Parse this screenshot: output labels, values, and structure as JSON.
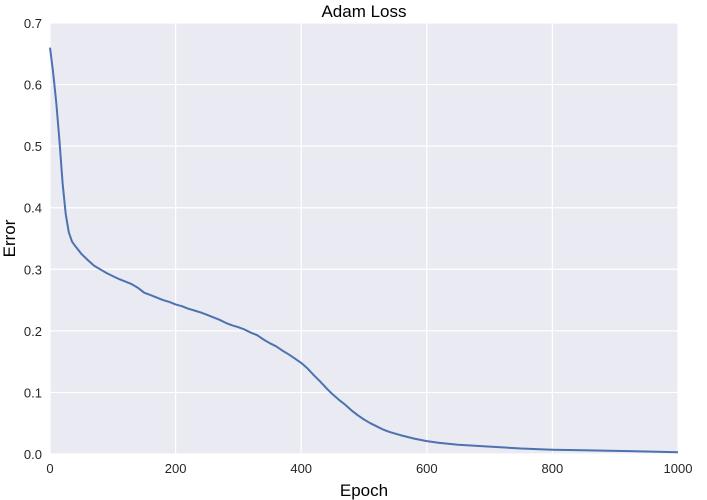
{
  "chart_data": {
    "type": "line",
    "title": "Adam Loss",
    "xlabel": "Epoch",
    "ylabel": "Error",
    "xlim": [
      0,
      1000
    ],
    "ylim": [
      0,
      0.7
    ],
    "xticks": [
      0,
      200,
      400,
      600,
      800,
      1000
    ],
    "yticks": [
      0.0,
      0.1,
      0.2,
      0.3,
      0.4,
      0.5,
      0.6,
      0.7
    ],
    "xtick_labels": [
      "0",
      "200",
      "400",
      "600",
      "800",
      "1000"
    ],
    "ytick_labels": [
      "0.0",
      "0.1",
      "0.2",
      "0.3",
      "0.4",
      "0.5",
      "0.6",
      "0.7"
    ],
    "grid": true,
    "style": {
      "background": "#eaeaf2",
      "grid_color": "#ffffff",
      "line_color": "#4c72b0"
    },
    "series": [
      {
        "x": [
          0,
          5,
          10,
          15,
          20,
          25,
          30,
          35,
          40,
          50,
          60,
          70,
          80,
          90,
          100,
          110,
          120,
          130,
          140,
          150,
          160,
          170,
          180,
          190,
          200,
          210,
          220,
          230,
          240,
          250,
          260,
          270,
          280,
          290,
          300,
          310,
          320,
          330,
          340,
          350,
          360,
          370,
          380,
          390,
          400,
          410,
          420,
          430,
          440,
          450,
          460,
          470,
          480,
          490,
          500,
          510,
          520,
          530,
          540,
          550,
          560,
          580,
          600,
          620,
          650,
          700,
          750,
          800,
          850,
          900,
          950,
          1000
        ],
        "y": [
          0.66,
          0.62,
          0.57,
          0.51,
          0.44,
          0.39,
          0.36,
          0.345,
          0.338,
          0.325,
          0.315,
          0.306,
          0.3,
          0.294,
          0.289,
          0.284,
          0.28,
          0.276,
          0.27,
          0.262,
          0.258,
          0.254,
          0.25,
          0.247,
          0.243,
          0.24,
          0.236,
          0.233,
          0.23,
          0.226,
          0.222,
          0.218,
          0.213,
          0.209,
          0.206,
          0.202,
          0.197,
          0.193,
          0.186,
          0.18,
          0.175,
          0.168,
          0.162,
          0.155,
          0.148,
          0.139,
          0.128,
          0.118,
          0.107,
          0.097,
          0.088,
          0.08,
          0.071,
          0.063,
          0.056,
          0.05,
          0.045,
          0.04,
          0.036,
          0.033,
          0.03,
          0.025,
          0.021,
          0.018,
          0.015,
          0.012,
          0.009,
          0.007,
          0.006,
          0.005,
          0.004,
          0.003
        ]
      }
    ]
  }
}
